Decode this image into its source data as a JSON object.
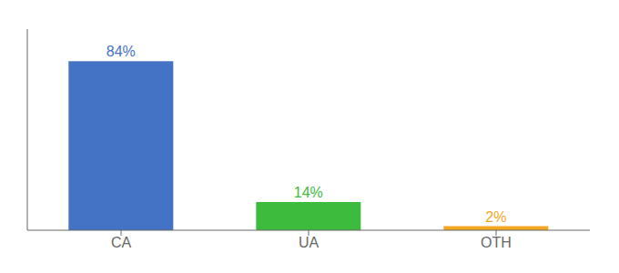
{
  "chart_data": {
    "type": "bar",
    "categories": [
      "CA",
      "UA",
      "OTH"
    ],
    "values": [
      84,
      14,
      2
    ],
    "value_labels": [
      "84%",
      "14%",
      "2%"
    ],
    "colors": [
      "#4472c4",
      "#3dbb3d",
      "#f5a623"
    ],
    "ylim": [
      0,
      100
    ],
    "data_labels": true,
    "tick_labels": "x"
  }
}
